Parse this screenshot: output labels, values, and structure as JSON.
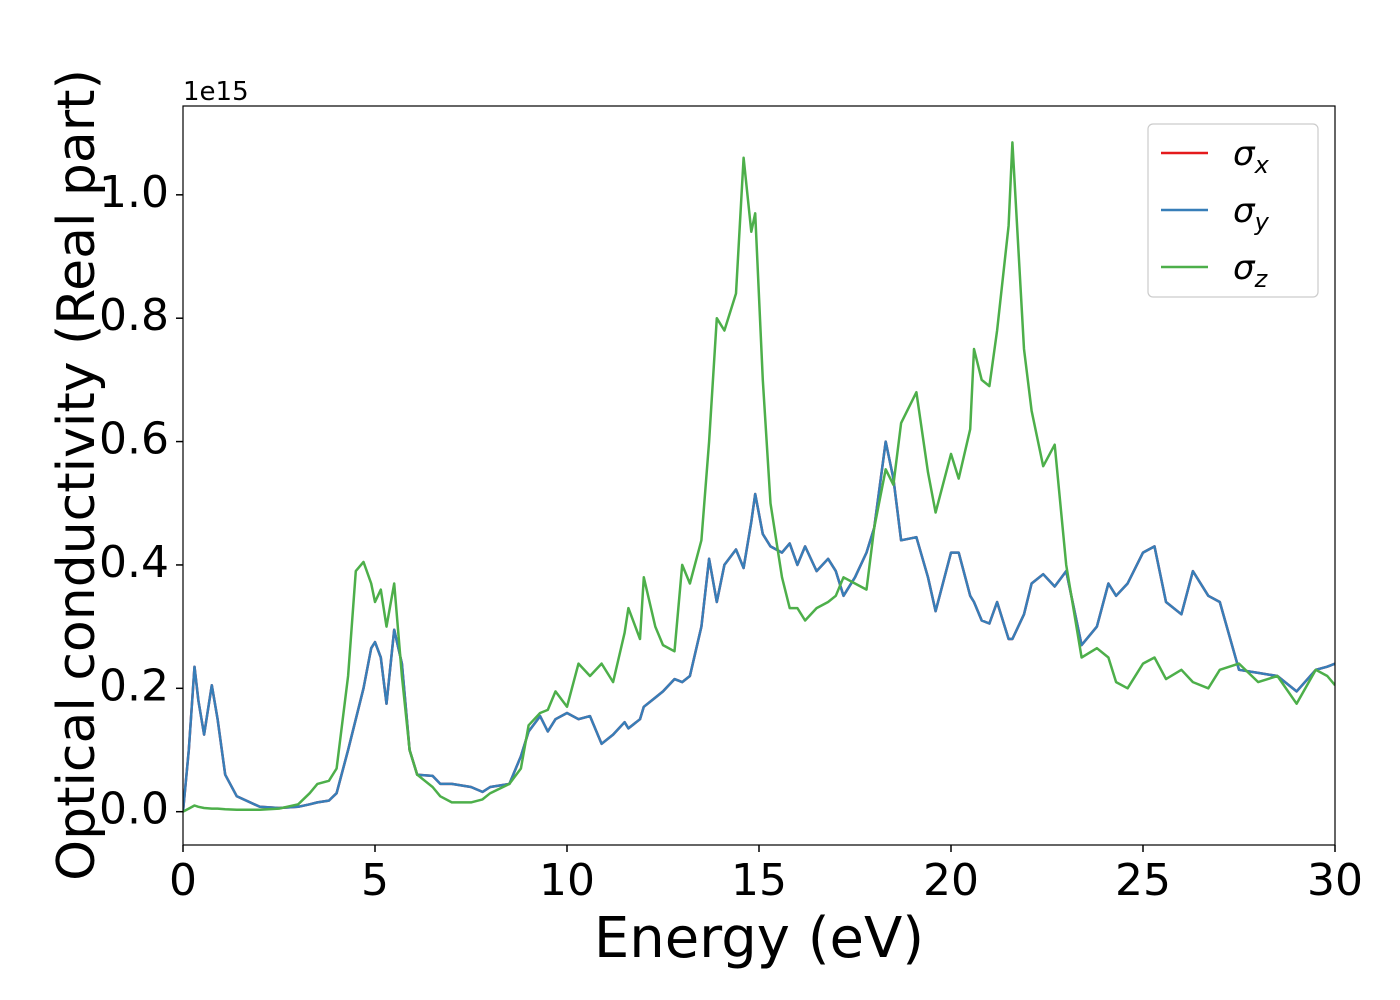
{
  "chart_data": {
    "type": "line",
    "xlabel": "Energy (eV)",
    "ylabel": "Optical conductivity (Real part)",
    "y_offset_label": "1e15",
    "x": [
      0,
      0.15,
      0.3,
      0.4,
      0.55,
      0.75,
      0.9,
      1.1,
      1.4,
      2.0,
      2.5,
      3.0,
      3.3,
      3.5,
      3.8,
      4.0,
      4.3,
      4.5,
      4.7,
      4.9,
      5.0,
      5.15,
      5.3,
      5.5,
      5.7,
      5.9,
      6.1,
      6.5,
      6.7,
      7.0,
      7.5,
      7.8,
      8.0,
      8.5,
      8.8,
      9.0,
      9.3,
      9.5,
      9.7,
      10.0,
      10.3,
      10.6,
      10.9,
      11.2,
      11.5,
      11.6,
      11.9,
      12.0,
      12.3,
      12.5,
      12.8,
      13.0,
      13.2,
      13.5,
      13.7,
      13.9,
      14.1,
      14.4,
      14.6,
      14.8,
      14.9,
      15.1,
      15.3,
      15.6,
      15.8,
      16.0,
      16.2,
      16.5,
      16.8,
      17.0,
      17.2,
      17.5,
      17.8,
      18.0,
      18.3,
      18.5,
      18.7,
      19.1,
      19.4,
      19.6,
      20.0,
      20.2,
      20.5,
      20.6,
      20.8,
      21.0,
      21.2,
      21.5,
      21.6,
      21.9,
      22.1,
      22.4,
      22.7,
      23.0,
      23.4,
      23.8,
      24.1,
      24.3,
      24.6,
      25.0,
      25.3,
      25.6,
      26.0,
      26.3,
      26.7,
      27.0,
      27.5,
      28.0,
      28.5,
      29.0,
      29.5,
      29.8,
      30.0
    ],
    "series": [
      {
        "name": "σx",
        "color": "#e41a1c",
        "values": [
          0,
          0.1,
          0.235,
          0.18,
          0.125,
          0.205,
          0.15,
          0.06,
          0.025,
          0.008,
          0.006,
          0.008,
          0.012,
          0.015,
          0.018,
          0.03,
          0.1,
          0.15,
          0.2,
          0.265,
          0.275,
          0.25,
          0.175,
          0.295,
          0.24,
          0.1,
          0.06,
          0.058,
          0.045,
          0.045,
          0.04,
          0.032,
          0.04,
          0.045,
          0.09,
          0.13,
          0.155,
          0.13,
          0.15,
          0.16,
          0.15,
          0.155,
          0.11,
          0.125,
          0.145,
          0.135,
          0.15,
          0.17,
          0.185,
          0.195,
          0.215,
          0.21,
          0.22,
          0.3,
          0.41,
          0.34,
          0.4,
          0.425,
          0.395,
          0.47,
          0.515,
          0.45,
          0.43,
          0.42,
          0.435,
          0.4,
          0.43,
          0.39,
          0.41,
          0.39,
          0.35,
          0.38,
          0.42,
          0.46,
          0.6,
          0.54,
          0.44,
          0.445,
          0.38,
          0.325,
          0.42,
          0.42,
          0.35,
          0.34,
          0.31,
          0.305,
          0.34,
          0.28,
          0.28,
          0.32,
          0.37,
          0.385,
          0.365,
          0.39,
          0.27,
          0.3,
          0.37,
          0.35,
          0.37,
          0.42,
          0.43,
          0.34,
          0.32,
          0.39,
          0.35,
          0.34,
          0.23,
          0.225,
          0.22,
          0.195,
          0.23,
          0.235,
          0.24
        ]
      },
      {
        "name": "σy",
        "color": "#377eb8",
        "values": [
          0,
          0.1,
          0.235,
          0.18,
          0.125,
          0.205,
          0.15,
          0.06,
          0.025,
          0.008,
          0.006,
          0.008,
          0.012,
          0.015,
          0.018,
          0.03,
          0.1,
          0.15,
          0.2,
          0.265,
          0.275,
          0.25,
          0.175,
          0.295,
          0.24,
          0.1,
          0.06,
          0.058,
          0.045,
          0.045,
          0.04,
          0.032,
          0.04,
          0.045,
          0.09,
          0.13,
          0.155,
          0.13,
          0.15,
          0.16,
          0.15,
          0.155,
          0.11,
          0.125,
          0.145,
          0.135,
          0.15,
          0.17,
          0.185,
          0.195,
          0.215,
          0.21,
          0.22,
          0.3,
          0.41,
          0.34,
          0.4,
          0.425,
          0.395,
          0.47,
          0.515,
          0.45,
          0.43,
          0.42,
          0.435,
          0.4,
          0.43,
          0.39,
          0.41,
          0.39,
          0.35,
          0.38,
          0.42,
          0.46,
          0.6,
          0.54,
          0.44,
          0.445,
          0.38,
          0.325,
          0.42,
          0.42,
          0.35,
          0.34,
          0.31,
          0.305,
          0.34,
          0.28,
          0.28,
          0.32,
          0.37,
          0.385,
          0.365,
          0.39,
          0.27,
          0.3,
          0.37,
          0.35,
          0.37,
          0.42,
          0.43,
          0.34,
          0.32,
          0.39,
          0.35,
          0.34,
          0.23,
          0.225,
          0.22,
          0.195,
          0.23,
          0.235,
          0.24
        ]
      },
      {
        "name": "σz",
        "color": "#4daf4a",
        "values": [
          0,
          0.005,
          0.01,
          0.008,
          0.006,
          0.005,
          0.005,
          0.004,
          0.003,
          0.003,
          0.005,
          0.012,
          0.03,
          0.045,
          0.05,
          0.07,
          0.22,
          0.39,
          0.405,
          0.37,
          0.34,
          0.36,
          0.3,
          0.37,
          0.22,
          0.1,
          0.06,
          0.04,
          0.025,
          0.015,
          0.015,
          0.02,
          0.03,
          0.045,
          0.07,
          0.14,
          0.16,
          0.165,
          0.195,
          0.17,
          0.24,
          0.22,
          0.24,
          0.21,
          0.29,
          0.33,
          0.28,
          0.38,
          0.3,
          0.27,
          0.26,
          0.4,
          0.37,
          0.44,
          0.6,
          0.8,
          0.78,
          0.84,
          1.06,
          0.94,
          0.97,
          0.7,
          0.5,
          0.38,
          0.33,
          0.33,
          0.31,
          0.33,
          0.34,
          0.35,
          0.38,
          0.37,
          0.36,
          0.46,
          0.555,
          0.53,
          0.63,
          0.68,
          0.55,
          0.485,
          0.58,
          0.54,
          0.62,
          0.75,
          0.7,
          0.69,
          0.78,
          0.95,
          1.085,
          0.75,
          0.65,
          0.56,
          0.595,
          0.4,
          0.25,
          0.265,
          0.25,
          0.21,
          0.2,
          0.24,
          0.25,
          0.215,
          0.23,
          0.21,
          0.2,
          0.23,
          0.24,
          0.21,
          0.22,
          0.175,
          0.23,
          0.22,
          0.205
        ]
      }
    ],
    "xlim": [
      0,
      30
    ],
    "xticks": [
      0,
      5,
      10,
      15,
      20,
      25,
      30
    ],
    "ylim": [
      -0.054,
      1.144
    ],
    "yticks": [
      {
        "value": 0,
        "label": "0.0"
      },
      0.2,
      0.4,
      0.6,
      0.8,
      {
        "value": 1,
        "label": "1.0"
      }
    ],
    "grid": false,
    "legend": "upper right"
  }
}
